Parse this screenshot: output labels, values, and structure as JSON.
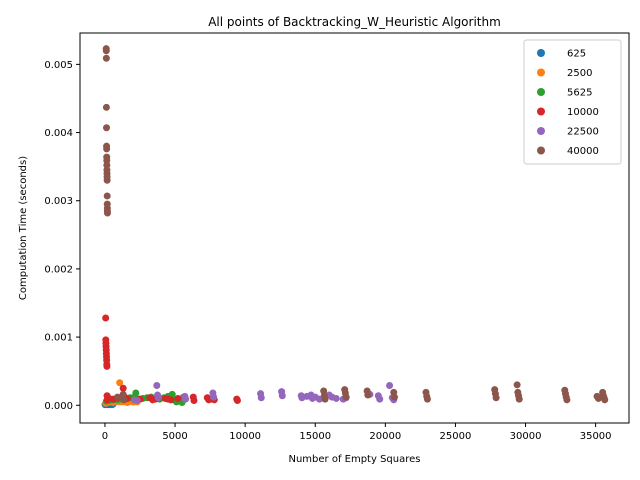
{
  "chart_data": {
    "type": "scatter",
    "title": "All points of Backtracking_W_Heuristic Algorithm",
    "xlabel": "Number of Empty Squares",
    "ylabel": "Computation Time (seconds)",
    "xlim": [
      -1780,
      37380
    ],
    "ylim": [
      -0.00026,
      0.00546
    ],
    "x_ticks": [
      0,
      5000,
      10000,
      15000,
      20000,
      25000,
      30000,
      35000
    ],
    "x_tick_labels": [
      "0",
      "5000",
      "10000",
      "15000",
      "20000",
      "25000",
      "30000",
      "35000"
    ],
    "y_ticks": [
      0.0,
      0.001,
      0.002,
      0.003,
      0.004,
      0.005
    ],
    "y_tick_labels": [
      "0.000",
      "0.001",
      "0.002",
      "0.003",
      "0.004",
      "0.005"
    ],
    "grid": false,
    "legend_position": "top-right",
    "series": [
      {
        "name": "625",
        "color": "#1f77b4",
        "points": [
          [
            10,
            1e-05
          ],
          [
            40,
            1e-05
          ],
          [
            80,
            2e-05
          ],
          [
            120,
            1e-05
          ],
          [
            160,
            2e-05
          ],
          [
            200,
            1e-05
          ],
          [
            240,
            2e-05
          ],
          [
            280,
            1e-05
          ],
          [
            320,
            2e-05
          ],
          [
            360,
            1e-05
          ],
          [
            400,
            2e-05
          ],
          [
            440,
            1e-05
          ],
          [
            480,
            2e-05
          ],
          [
            520,
            1e-05
          ],
          [
            560,
            3e-05
          ],
          [
            600,
            2e-05
          ]
        ]
      },
      {
        "name": "2500",
        "color": "#ff7f0e",
        "points": [
          [
            60,
            3e-05
          ],
          [
            200,
            4e-05
          ],
          [
            400,
            5e-05
          ],
          [
            600,
            4e-05
          ],
          [
            800,
            6e-05
          ],
          [
            1000,
            5e-05
          ],
          [
            1050,
            0.00033
          ],
          [
            1200,
            5e-05
          ],
          [
            1400,
            5e-05
          ],
          [
            1600,
            4e-05
          ],
          [
            1800,
            6e-05
          ],
          [
            1950,
            5e-05
          ],
          [
            2100,
            5e-05
          ],
          [
            2300,
            5e-05
          ]
        ]
      },
      {
        "name": "5625",
        "color": "#2ca02c",
        "points": [
          [
            100,
            6e-05
          ],
          [
            300,
            7e-05
          ],
          [
            600,
            8e-05
          ],
          [
            900,
            8e-05
          ],
          [
            1200,
            9e-05
          ],
          [
            1500,
            0.0001
          ],
          [
            1800,
            0.00011
          ],
          [
            2100,
            0.00012
          ],
          [
            2200,
            0.00018
          ],
          [
            2400,
            9e-05
          ],
          [
            2700,
            0.0001
          ],
          [
            3000,
            0.00011
          ],
          [
            3300,
            0.00012
          ],
          [
            3600,
            0.0001
          ],
          [
            3900,
            9e-05
          ],
          [
            4200,
            0.00011
          ],
          [
            4500,
            0.00013
          ],
          [
            4800,
            0.00016
          ],
          [
            4900,
            8e-05
          ],
          [
            5100,
            5e-05
          ],
          [
            5300,
            6e-05
          ],
          [
            5500,
            4e-05
          ],
          [
            5600,
            0.00012
          ]
        ]
      },
      {
        "name": "10000",
        "color": "#d62728",
        "points": [
          [
            50,
            0.00128
          ],
          [
            60,
            0.00096
          ],
          [
            70,
            0.00091
          ],
          [
            80,
            0.00086
          ],
          [
            90,
            0.00081
          ],
          [
            100,
            0.00076
          ],
          [
            110,
            0.00071
          ],
          [
            120,
            0.00066
          ],
          [
            130,
            0.0006
          ],
          [
            140,
            0.00057
          ],
          [
            150,
            0.00014
          ],
          [
            160,
            8e-05
          ],
          [
            300,
            0.0001
          ],
          [
            600,
            9e-05
          ],
          [
            900,
            0.00011
          ],
          [
            1300,
            0.00025
          ],
          [
            1400,
            0.00012
          ],
          [
            1600,
            0.0001
          ],
          [
            2500,
            9e-05
          ],
          [
            3200,
            0.00011
          ],
          [
            3400,
            8e-05
          ],
          [
            3600,
            9e-05
          ],
          [
            4300,
            0.0001
          ],
          [
            4500,
            9e-05
          ],
          [
            4700,
            8e-05
          ],
          [
            5200,
            0.0001
          ],
          [
            6300,
            0.00012
          ],
          [
            6350,
            7e-05
          ],
          [
            7300,
            0.00011
          ],
          [
            7400,
            8e-05
          ],
          [
            7600,
            9e-05
          ],
          [
            7800,
            8e-05
          ],
          [
            9400,
            9e-05
          ],
          [
            9450,
            7e-05
          ]
        ]
      },
      {
        "name": "22500",
        "color": "#9467bd",
        "points": [
          [
            2100,
            8e-05
          ],
          [
            2300,
            7e-05
          ],
          [
            3700,
            0.00029
          ],
          [
            3750,
            0.00015
          ],
          [
            3800,
            0.00011
          ],
          [
            5700,
            0.00013
          ],
          [
            5750,
            9e-05
          ],
          [
            7700,
            0.00018
          ],
          [
            7750,
            0.00012
          ],
          [
            11100,
            0.00017
          ],
          [
            11150,
            0.00011
          ],
          [
            12600,
            0.0002
          ],
          [
            12650,
            0.00014
          ],
          [
            14000,
            0.00014
          ],
          [
            14050,
            0.00011
          ],
          [
            14400,
            0.00013
          ],
          [
            14700,
            0.00015
          ],
          [
            14800,
            0.0001
          ],
          [
            15000,
            0.00012
          ],
          [
            15300,
            9e-05
          ],
          [
            16000,
            0.00015
          ],
          [
            16200,
            0.00012
          ],
          [
            16500,
            0.0001
          ],
          [
            17000,
            9e-05
          ],
          [
            17200,
            0.00011
          ],
          [
            18900,
            0.00016
          ],
          [
            19500,
            0.00014
          ],
          [
            19600,
            9e-05
          ],
          [
            20300,
            0.00029
          ],
          [
            20500,
            0.00011
          ],
          [
            20600,
            8e-05
          ]
        ]
      },
      {
        "name": "40000",
        "color": "#8c564b",
        "points": [
          [
            90,
            0.00523
          ],
          [
            95,
            0.0052
          ],
          [
            100,
            0.00509
          ],
          [
            105,
            0.00437
          ],
          [
            110,
            0.00407
          ],
          [
            115,
            0.0038
          ],
          [
            120,
            0.00376
          ],
          [
            125,
            0.00364
          ],
          [
            130,
            0.00359
          ],
          [
            135,
            0.00352
          ],
          [
            140,
            0.00345
          ],
          [
            145,
            0.0034
          ],
          [
            150,
            0.00335
          ],
          [
            155,
            0.0033
          ],
          [
            160,
            0.00307
          ],
          [
            165,
            0.00295
          ],
          [
            170,
            0.00289
          ],
          [
            175,
            0.00285
          ],
          [
            180,
            0.00282
          ],
          [
            900,
            0.00012
          ],
          [
            1300,
            0.00016
          ],
          [
            1350,
            8e-05
          ],
          [
            15600,
            0.00021
          ],
          [
            15650,
            0.00014
          ],
          [
            15700,
            9e-05
          ],
          [
            17100,
            0.00023
          ],
          [
            17150,
            0.00018
          ],
          [
            17200,
            0.00012
          ],
          [
            18700,
            0.00021
          ],
          [
            18750,
            0.00015
          ],
          [
            20600,
            0.00019
          ],
          [
            20650,
            0.00012
          ],
          [
            22900,
            0.00019
          ],
          [
            22950,
            0.00013
          ],
          [
            23000,
            9e-05
          ],
          [
            27800,
            0.00023
          ],
          [
            27850,
            0.00017
          ],
          [
            27900,
            0.00011
          ],
          [
            29400,
            0.0003
          ],
          [
            29450,
            0.00019
          ],
          [
            29500,
            0.00014
          ],
          [
            29550,
            9e-05
          ],
          [
            32800,
            0.00022
          ],
          [
            32850,
            0.00017
          ],
          [
            32900,
            0.00012
          ],
          [
            32950,
            8e-05
          ],
          [
            35100,
            0.00013
          ],
          [
            35200,
            0.0001
          ],
          [
            35500,
            0.00019
          ],
          [
            35550,
            0.00014
          ],
          [
            35600,
            0.00011
          ],
          [
            35650,
            8e-05
          ]
        ]
      }
    ]
  }
}
